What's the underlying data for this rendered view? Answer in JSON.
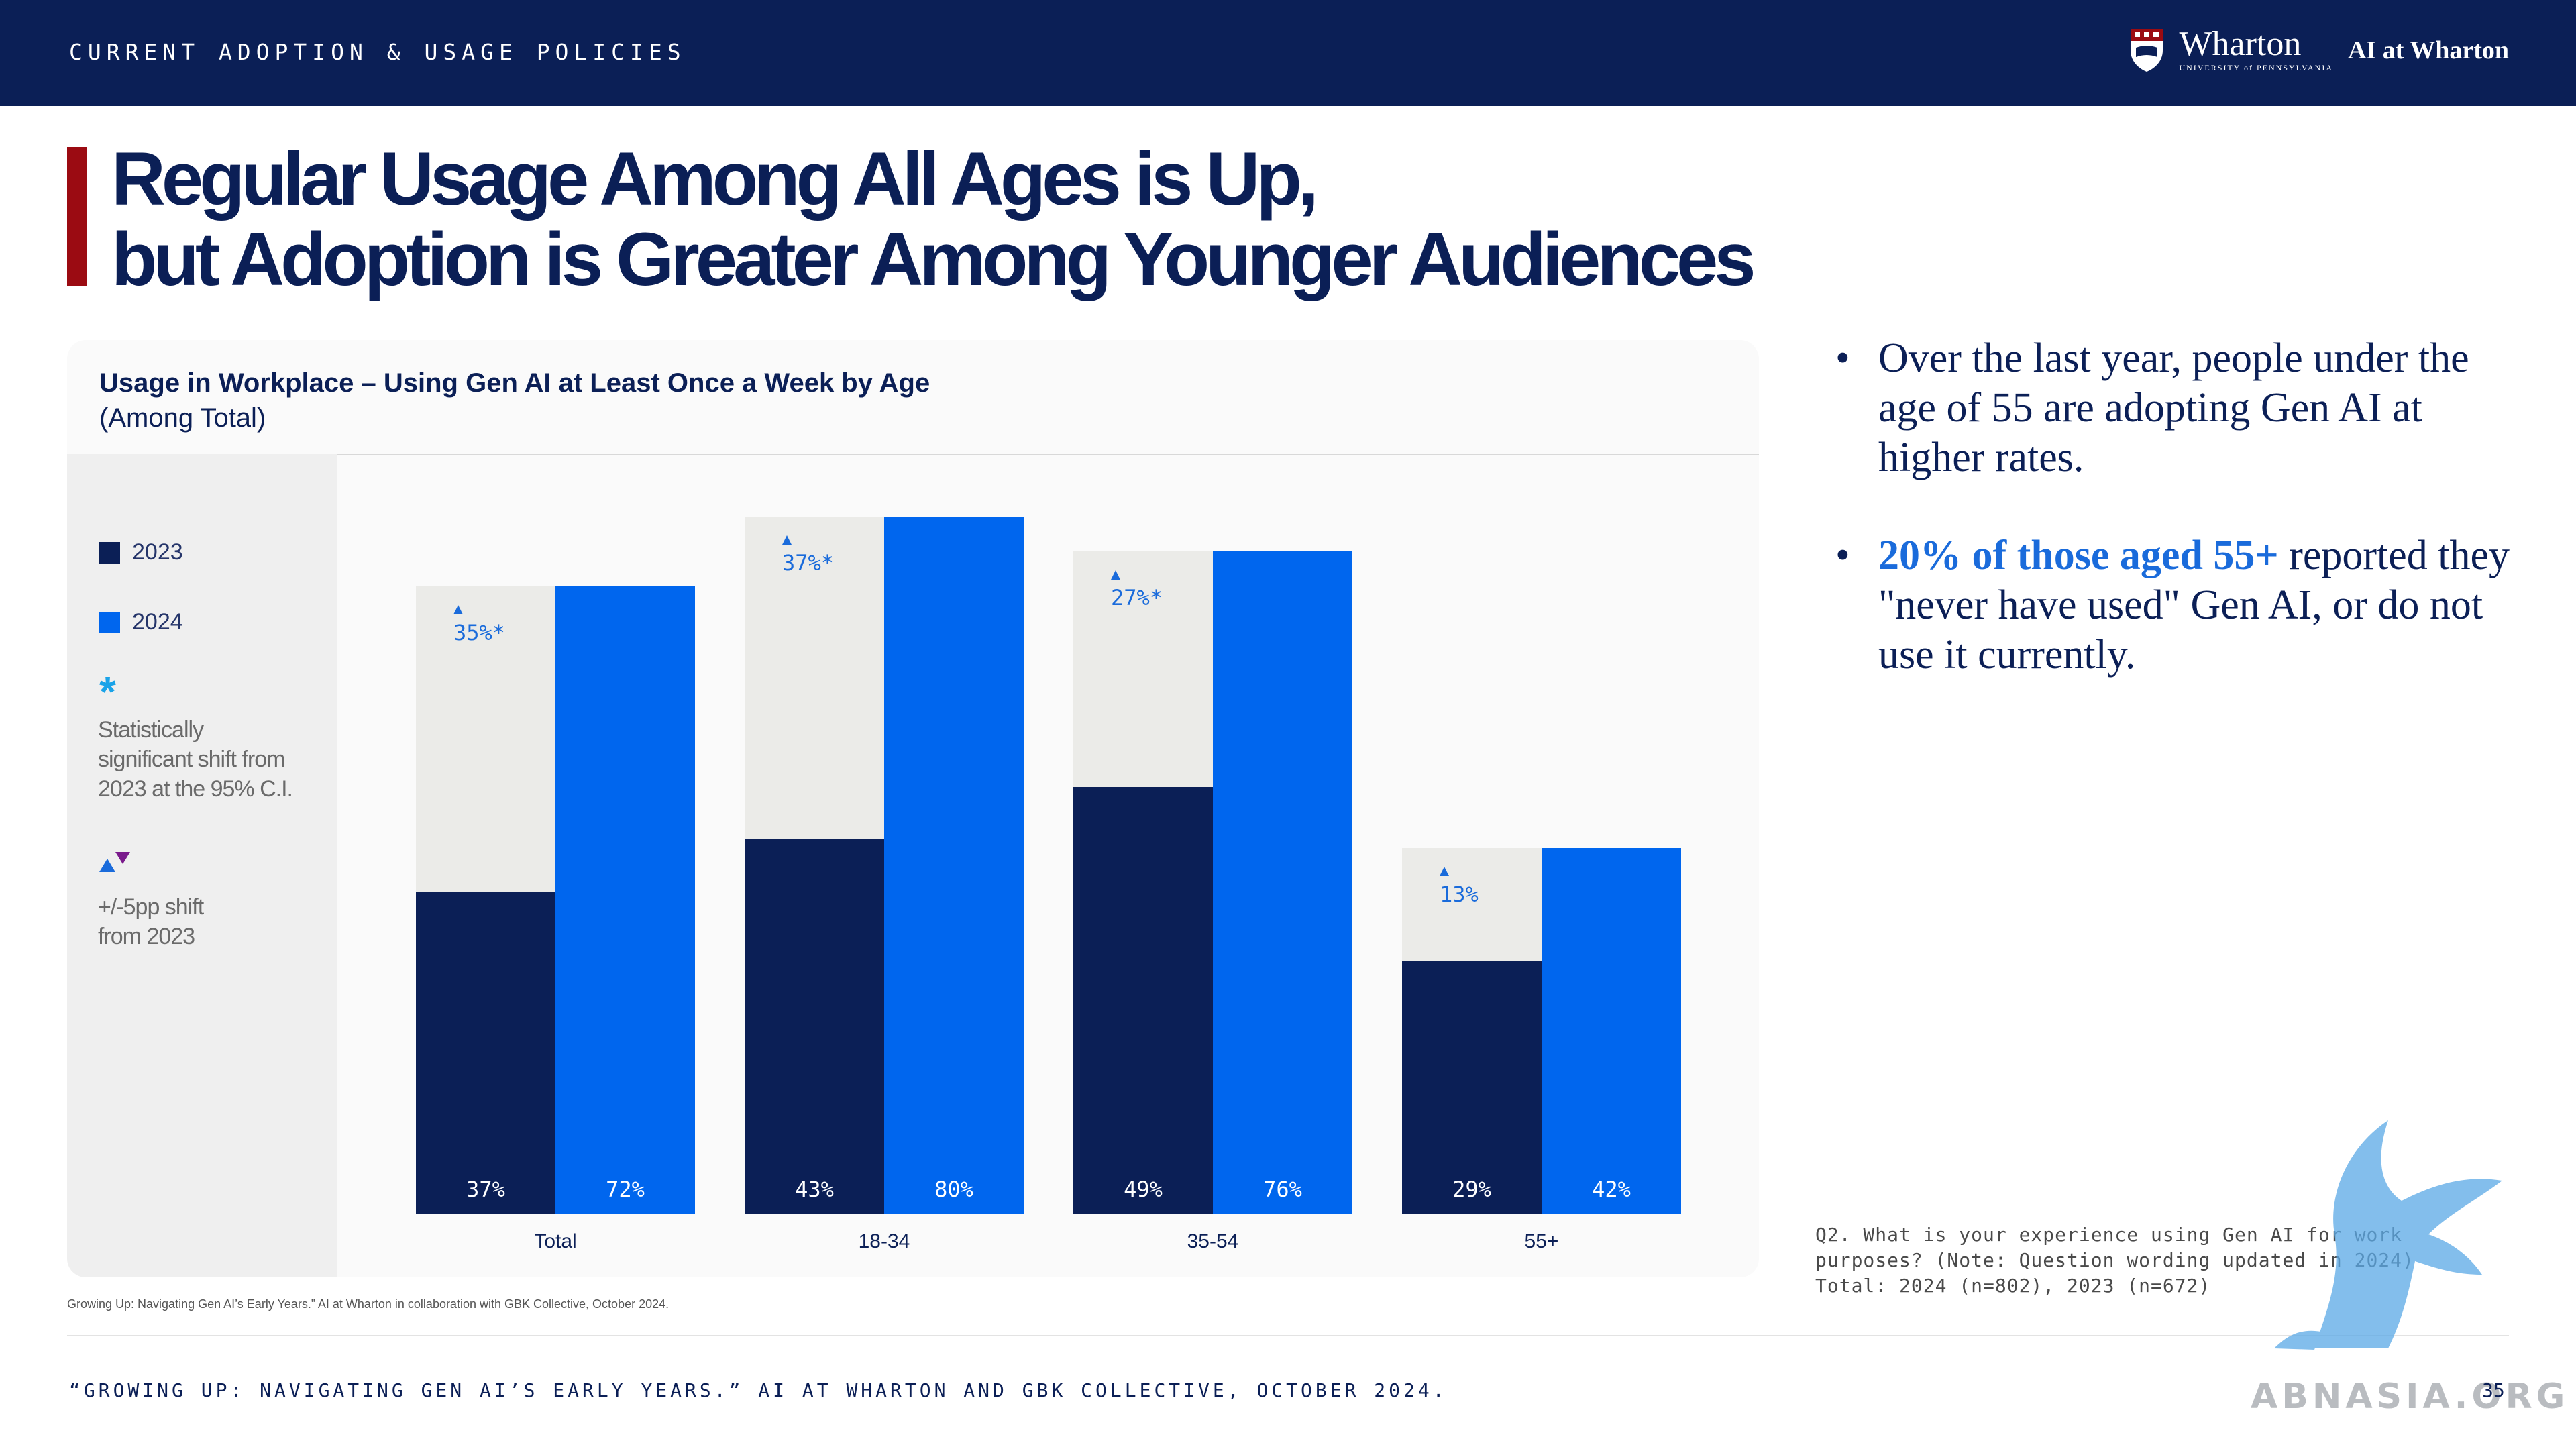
{
  "header": {
    "section_label": "CURRENT ADOPTION & USAGE POLICIES",
    "brand_name": "Wharton",
    "brand_sub": "UNIVERSITY of PENNSYLVANIA",
    "brand_ai": "AI at Wharton"
  },
  "title": {
    "line1": "Regular Usage Among All Ages is Up,",
    "line2": "but Adoption is Greater Among Younger Audiences"
  },
  "legend": {
    "series_2023": "2023",
    "series_2024": "2024",
    "star": "*",
    "star_note_1": "Statistically",
    "star_note_2": "significant shift from",
    "star_note_3": "2023 at the 95% C.I.",
    "shift_note_1": "+/-5pp shift",
    "shift_note_2": "from 2023"
  },
  "chart_data": {
    "type": "bar",
    "title": "Usage in Workplace – Using Gen AI at Least Once a Week by Age",
    "subtitle": "(Among Total)",
    "categories": [
      "Total",
      "18-34",
      "35-54",
      "55+"
    ],
    "series": [
      {
        "name": "2023",
        "values": [
          37,
          43,
          49,
          29
        ],
        "labels": [
          "37%",
          "43%",
          "49%",
          "29%"
        ]
      },
      {
        "name": "2024",
        "values": [
          72,
          80,
          76,
          42
        ],
        "labels": [
          "72%",
          "80%",
          "76%",
          "42%"
        ]
      }
    ],
    "shift_labels": [
      "35%*",
      "37%*",
      "27%*",
      "13%"
    ],
    "shift_direction": [
      "up",
      "up",
      "up",
      "up"
    ],
    "ylim": [
      0,
      80
    ],
    "colors": {
      "2023": "#0b1f56",
      "2024": "#0066ee",
      "gap": "#ebebe8",
      "shift": "#1a6bdb"
    }
  },
  "bullets": {
    "b1": "Over the last year, people under the age of 55 are adopting Gen AI at higher rates.",
    "b2_highlight": "20% of those aged 55+",
    "b2_rest": " reported they \"never have used\" Gen AI, or do not use it currently."
  },
  "footnote": {
    "line1": "Q2. What is your experience using Gen AI for work",
    "line2": "purposes? (Note: Question wording updated in 2024)",
    "line3": "Total: 2024 (n=802), 2023 (n=672)"
  },
  "source_small": "Growing Up: Navigating Gen AI’s Early Years.” AI at Wharton in collaboration with GBK Collective, October 2024.",
  "bottom_source": "“GROWING UP: NAVIGATING GEN AI’S EARLY YEARS.” AI AT WHARTON AND GBK COLLECTIVE, OCTOBER 2024.",
  "page_number": "35",
  "watermark": "ABNASIA.ORG"
}
